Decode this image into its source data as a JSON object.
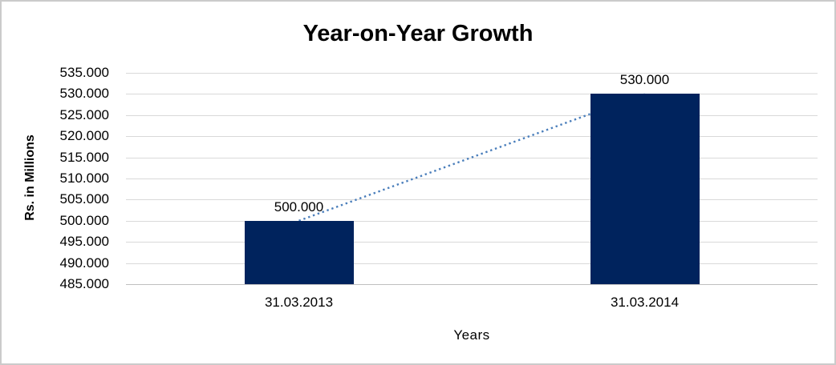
{
  "chart_data": {
    "type": "bar",
    "title": "Year-on-Year Growth",
    "xlabel": "Years",
    "ylabel": "Rs. in Millions",
    "categories": [
      "31.03.2013",
      "31.03.2014"
    ],
    "values": [
      500000,
      530000
    ],
    "data_labels": [
      "500.000",
      "530.000"
    ],
    "ylim": [
      485000,
      535000
    ],
    "ytick_step": 5000,
    "ytick_labels": [
      "485.000",
      "490.000",
      "495.000",
      "500.000",
      "505.000",
      "510.000",
      "515.000",
      "520.000",
      "525.000",
      "530.000",
      "535.000"
    ],
    "grid": true,
    "legend": false,
    "bar_color": "#00235d",
    "gridline_color": "#d9d9d9",
    "baseline_color": "#bfbfbf",
    "trendline": {
      "style": "dotted",
      "color": "#4a7ebb"
    }
  }
}
